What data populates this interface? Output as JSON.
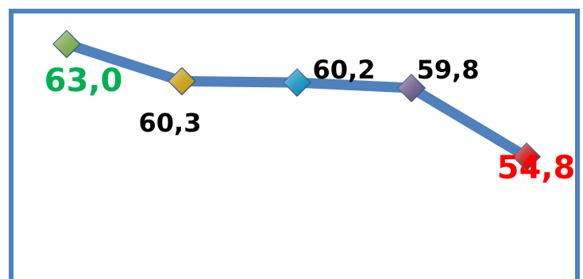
{
  "chart_data": {
    "type": "line",
    "title": "",
    "xlabel": "",
    "ylabel": "",
    "x": [
      1,
      2,
      3,
      4,
      5
    ],
    "series": [
      {
        "values": [
          63.0,
          60.3,
          60.2,
          59.8,
          54.8
        ],
        "labels": [
          "63,0",
          "60,3",
          "60,2",
          "59,8",
          "54,8"
        ],
        "label_colors": [
          "#00b050",
          "#000000",
          "#000000",
          "#000000",
          "#ff0000"
        ],
        "marker_colors": [
          "#92d050",
          "#ffc000",
          "#00b0f0",
          "#8064a2",
          "#ff0000"
        ]
      }
    ],
    "ylim": [
      45.5,
      65.4
    ],
    "line_color": "#4f81bd",
    "frame_color": "#4f81bd",
    "grid": false,
    "legend": "none"
  }
}
